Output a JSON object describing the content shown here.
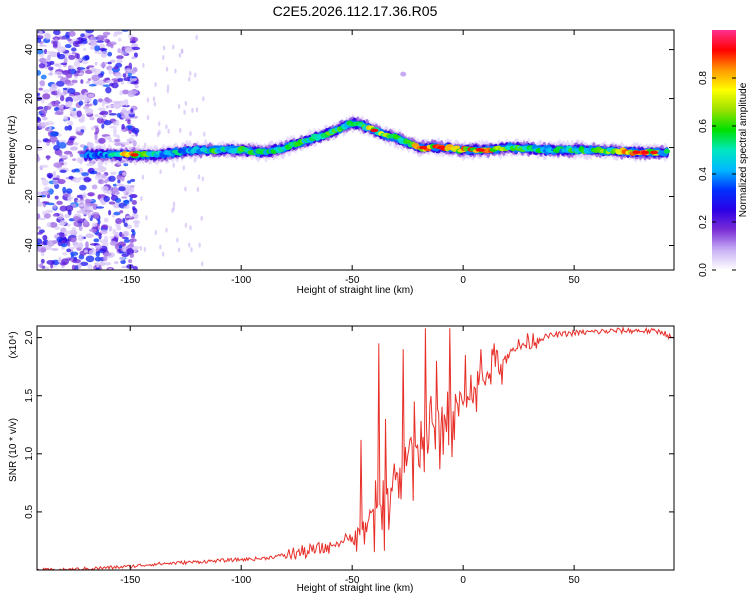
{
  "figure_title": "C2E5.2026.112.17.36.R05",
  "chart_data": [
    {
      "type": "heatmap",
      "name": "spectrogram",
      "xlabel": "Height of straight line (km)",
      "ylabel": "Frequency (Hz)",
      "xlim": [
        -192,
        95
      ],
      "ylim": [
        -50,
        48
      ],
      "xticks": [
        -150,
        -100,
        -50,
        0,
        50
      ],
      "yticks": [
        -40,
        -20,
        0,
        20,
        40
      ],
      "colorbar": {
        "label": "Normalized spectral amplitude",
        "range": [
          0,
          1
        ],
        "ticks": [
          "0.0",
          "0.2",
          "0.4",
          "0.6",
          "0.8"
        ],
        "colormap": [
          "#ffffff",
          "#c9b0f5",
          "#7b2fd6",
          "#2c00e6",
          "#0030ff",
          "#00b8ff",
          "#00e8c0",
          "#00e000",
          "#9be000",
          "#ffff00",
          "#ff9900",
          "#ff0000",
          "#ff3090"
        ]
      },
      "ridge": {
        "x": [
          -170,
          -160,
          -150,
          -140,
          -130,
          -120,
          -110,
          -100,
          -90,
          -80,
          -70,
          -60,
          -50,
          -45,
          -40,
          -35,
          -30,
          -25,
          -20,
          -10,
          0,
          10,
          20,
          40,
          60,
          80,
          92
        ],
        "freq_hz": [
          -3,
          -3,
          -3,
          -3,
          -2,
          -1,
          -1,
          -1,
          -2,
          0,
          3,
          6,
          10,
          9,
          7,
          5,
          4,
          2,
          0,
          0,
          -1,
          -1,
          0,
          -1,
          -1,
          -2,
          -2
        ],
        "amplitude": [
          0.35,
          0.45,
          0.85,
          0.55,
          0.5,
          0.55,
          0.6,
          0.6,
          0.55,
          0.55,
          0.6,
          0.6,
          0.55,
          0.7,
          0.75,
          0.65,
          0.6,
          0.55,
          0.9,
          0.85,
          0.8,
          0.9,
          0.6,
          0.55,
          0.6,
          0.95,
          0.5
        ]
      },
      "noise_region": {
        "x_range": [
          -192,
          -147
        ],
        "freq_range": [
          -50,
          48
        ]
      }
    },
    {
      "type": "line",
      "name": "snr",
      "xlabel": "Height of straight line (km)",
      "ylabel": "SNR (10 * v/v)",
      "y_multiplier": "(x10⁴)",
      "xlim": [
        -192,
        95
      ],
      "ylim": [
        0,
        2.1
      ],
      "xticks": [
        -150,
        -100,
        -50,
        0,
        50
      ],
      "yticks": [
        0.5,
        1.0,
        1.5,
        2.0
      ],
      "ytick_labels": [
        "0.5",
        "1.0",
        "1.5",
        "2.0"
      ],
      "color": "#e8302a",
      "series": [
        {
          "x": [
            -192,
            -180,
            -170,
            -160,
            -150,
            -140,
            -130,
            -120,
            -110,
            -100,
            -90,
            -80,
            -70,
            -60,
            -50,
            -45,
            -40,
            -35,
            -30,
            -25,
            -20,
            -15,
            -10,
            -5,
            0,
            5,
            10,
            15,
            20,
            25,
            30,
            40,
            50,
            60,
            70,
            80,
            90,
            95
          ],
          "values": [
            0.0,
            0.0,
            0.01,
            0.02,
            0.03,
            0.05,
            0.06,
            0.07,
            0.08,
            0.09,
            0.1,
            0.13,
            0.16,
            0.2,
            0.28,
            0.35,
            0.5,
            0.6,
            0.8,
            1.0,
            1.1,
            1.2,
            1.25,
            1.3,
            1.45,
            1.55,
            1.65,
            1.75,
            1.85,
            1.92,
            1.97,
            2.02,
            2.04,
            2.05,
            2.06,
            2.06,
            2.05,
            1.98
          ],
          "spikes": [
            {
              "x": -46,
              "y": 1.12
            },
            {
              "x": -38,
              "y": 1.95
            },
            {
              "x": -35,
              "y": 1.3
            },
            {
              "x": -27,
              "y": 1.9
            },
            {
              "x": -22,
              "y": 1.45
            },
            {
              "x": -17,
              "y": 2.08
            },
            {
              "x": -12,
              "y": 1.8
            },
            {
              "x": -6,
              "y": 2.08
            },
            {
              "x": 1,
              "y": 1.85
            },
            {
              "x": 8,
              "y": 1.9
            },
            {
              "x": 14,
              "y": 1.95
            }
          ]
        }
      ]
    }
  ]
}
